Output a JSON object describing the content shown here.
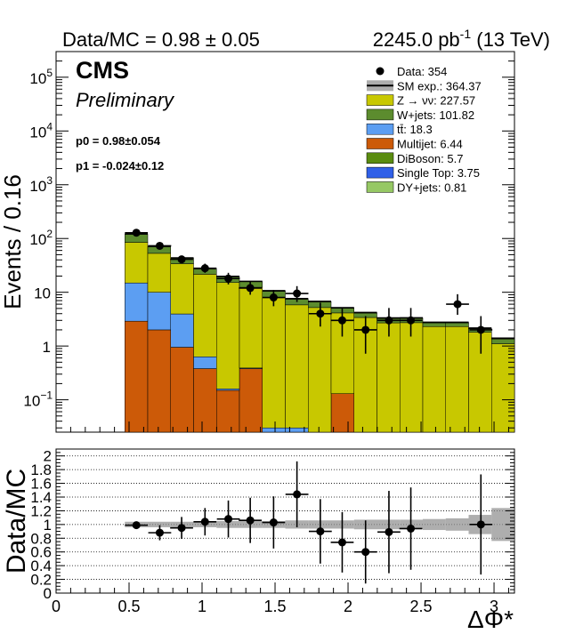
{
  "header": {
    "ratio_text": "Data/MC = 0.98 ± 0.05",
    "lumi_value": "2245.0 pb",
    "lumi_exp": "-1",
    "lumi_energy": "(13 TeV)"
  },
  "labels": {
    "cms": "CMS",
    "preliminary": "Preliminary",
    "p0": "p0 = 0.98±0.054",
    "p1": "p1 = -0.024±0.12"
  },
  "chart_data": [
    {
      "type": "bar",
      "stacked": true,
      "log_y": true,
      "ylabel": "Events / 0.16",
      "xlim": [
        0,
        3.14
      ],
      "ylim": [
        0.025,
        300000
      ],
      "bin_edges": [
        0,
        0.157,
        0.314,
        0.471,
        0.628,
        0.785,
        0.942,
        1.099,
        1.256,
        1.413,
        1.57,
        1.727,
        1.884,
        2.041,
        2.198,
        2.355,
        2.512,
        2.669,
        2.826,
        2.983,
        3.14
      ],
      "y_ticks": [
        {
          "value": 0.1,
          "base": "10",
          "exp": "−1"
        },
        {
          "value": 1,
          "base": "1",
          "exp": ""
        },
        {
          "value": 10,
          "base": "10",
          "exp": ""
        },
        {
          "value": 100,
          "base": "10",
          "exp": "2"
        },
        {
          "value": 1000,
          "base": "10",
          "exp": "3"
        },
        {
          "value": 10000,
          "base": "10",
          "exp": "4"
        },
        {
          "value": 100000,
          "base": "10",
          "exp": "5"
        }
      ],
      "stack": [
        {
          "name": "Multijet",
          "color": "#cc5a08",
          "values": [
            0,
            0,
            0,
            2.9,
            2.0,
            0.95,
            0.38,
            0.15,
            0.38,
            0,
            0,
            0,
            0.13,
            0,
            0,
            0,
            0,
            0,
            0,
            0
          ]
        },
        {
          "name": "tt",
          "color": "#5c9ef2",
          "values": [
            0,
            0,
            0,
            12,
            8.0,
            3.0,
            0.25,
            0.01,
            0.01,
            0.03,
            0.03,
            0,
            0,
            0,
            0,
            0.02,
            0,
            0,
            0,
            0
          ]
        },
        {
          "name": "Z → νν",
          "color": "#c8c800",
          "values": [
            0,
            0,
            0,
            70,
            43,
            30,
            21,
            15,
            12,
            8.0,
            5.8,
            5.2,
            4.0,
            3.4,
            2.7,
            2.7,
            2.3,
            2.3,
            1.8,
            1.1
          ]
        },
        {
          "name": "W+jets",
          "color": "#5c8c2e",
          "values": [
            0,
            0,
            0,
            35,
            17,
            9.0,
            5.5,
            4.2,
            3.3,
            2.4,
            1.6,
            1.4,
            0.9,
            0.7,
            0.55,
            0.55,
            0.4,
            0.4,
            0.3,
            0.25
          ]
        },
        {
          "name": "DiBoson",
          "color": "#5a8c10",
          "values": [
            0,
            0,
            0,
            0.7,
            0.4,
            0.3,
            0.25,
            0.2,
            0.15,
            0.15,
            0.12,
            0.1,
            0.08,
            0.06,
            0.05,
            0.05,
            0.04,
            0.04,
            0.03,
            0.03
          ]
        },
        {
          "name": "Single Top",
          "color": "#3060e8",
          "values": [
            0,
            0,
            0,
            0.8,
            0.5,
            0.3,
            0.2,
            0.15,
            0.1,
            0.08,
            0.05,
            0.04,
            0.04,
            0.03,
            0.02,
            0.02,
            0.02,
            0.02,
            0.02,
            0.01
          ]
        },
        {
          "name": "DY+jets",
          "color": "#96c864",
          "values": [
            0,
            0,
            0,
            0.2,
            0.1,
            0.08,
            0.06,
            0.05,
            0.04,
            0.03,
            0.02,
            0.02,
            0.02,
            0.02,
            0.01,
            0.01,
            0.01,
            0.01,
            0.01,
            0.01
          ]
        }
      ],
      "data_points": {
        "x": [
          0.55,
          0.71,
          0.86,
          1.02,
          1.18,
          1.33,
          1.49,
          1.65,
          1.81,
          1.96,
          2.12,
          2.28,
          2.43,
          2.75,
          2.91
        ],
        "y": [
          128,
          73,
          41,
          28,
          18,
          12,
          8,
          9.5,
          4,
          3,
          2,
          3,
          3,
          6,
          2
        ],
        "y_low": [
          117,
          65,
          35,
          23,
          14,
          9,
          5.5,
          6.6,
          2.3,
          1.5,
          0.72,
          1.5,
          1.5,
          3.8,
          0.72
        ],
        "y_high": [
          140,
          82,
          48,
          34,
          23,
          16,
          11,
          13,
          6.4,
          5.1,
          3.6,
          5.1,
          5.1,
          9.2,
          3.6
        ]
      },
      "legend": {
        "placement": "top-right",
        "items": [
          {
            "label": "Data: 354",
            "kind": "marker",
            "color": "#000000"
          },
          {
            "label": "SM exp.: 364.37",
            "kind": "band",
            "color": "#888888"
          },
          {
            "label": "Z → νν: 227.57",
            "kind": "box",
            "color": "#c8c800"
          },
          {
            "label": "W+jets: 101.82",
            "kind": "box",
            "color": "#5c8c2e"
          },
          {
            "label": "tt̄: 18.3",
            "kind": "box",
            "color": "#5c9ef2"
          },
          {
            "label": "Multijet: 6.44",
            "kind": "box",
            "color": "#cc5a08"
          },
          {
            "label": "DiBoson: 5.7",
            "kind": "box",
            "color": "#5a8c10"
          },
          {
            "label": "Single Top: 3.75",
            "kind": "box",
            "color": "#3060e8"
          },
          {
            "label": "DY+jets: 0.81",
            "kind": "box",
            "color": "#96c864"
          }
        ]
      }
    },
    {
      "type": "scatter",
      "ylabel": "Data/MC",
      "xlabel": "ΔΦ*",
      "xlim": [
        0,
        3.14
      ],
      "ylim": [
        0,
        2.1
      ],
      "grid": true,
      "x_ticks": [
        "0",
        "0.5",
        "1",
        "1.5",
        "2",
        "2.5",
        "3"
      ],
      "y_ticks": [
        "0",
        "0.2",
        "0.4",
        "0.6",
        "0.8",
        "1",
        "1.2",
        "1.4",
        "1.6",
        "1.8",
        "2"
      ],
      "points": {
        "x": [
          0.55,
          0.71,
          0.86,
          1.02,
          1.18,
          1.33,
          1.49,
          1.65,
          1.81,
          1.96,
          2.12,
          2.28,
          2.43,
          2.91
        ],
        "y": [
          0.99,
          0.88,
          0.95,
          1.04,
          1.08,
          1.06,
          1.03,
          1.44,
          0.9,
          0.74,
          0.6,
          0.89,
          0.94,
          1.0
        ],
        "err": [
          0.05,
          0.11,
          0.16,
          0.2,
          0.27,
          0.33,
          0.38,
          0.48,
          0.47,
          0.44,
          0.46,
          0.6,
          0.6,
          0.73
        ]
      },
      "band": {
        "x": [
          0.471,
          0.628,
          0.785,
          0.942,
          1.099,
          1.256,
          1.413,
          1.57,
          1.727,
          1.884,
          2.041,
          2.198,
          2.355,
          2.512,
          2.669,
          2.826,
          2.983
        ],
        "half_width": [
          0.04,
          0.04,
          0.04,
          0.04,
          0.05,
          0.05,
          0.05,
          0.06,
          0.06,
          0.06,
          0.07,
          0.07,
          0.07,
          0.08,
          0.09,
          0.14,
          0.24
        ]
      }
    }
  ]
}
